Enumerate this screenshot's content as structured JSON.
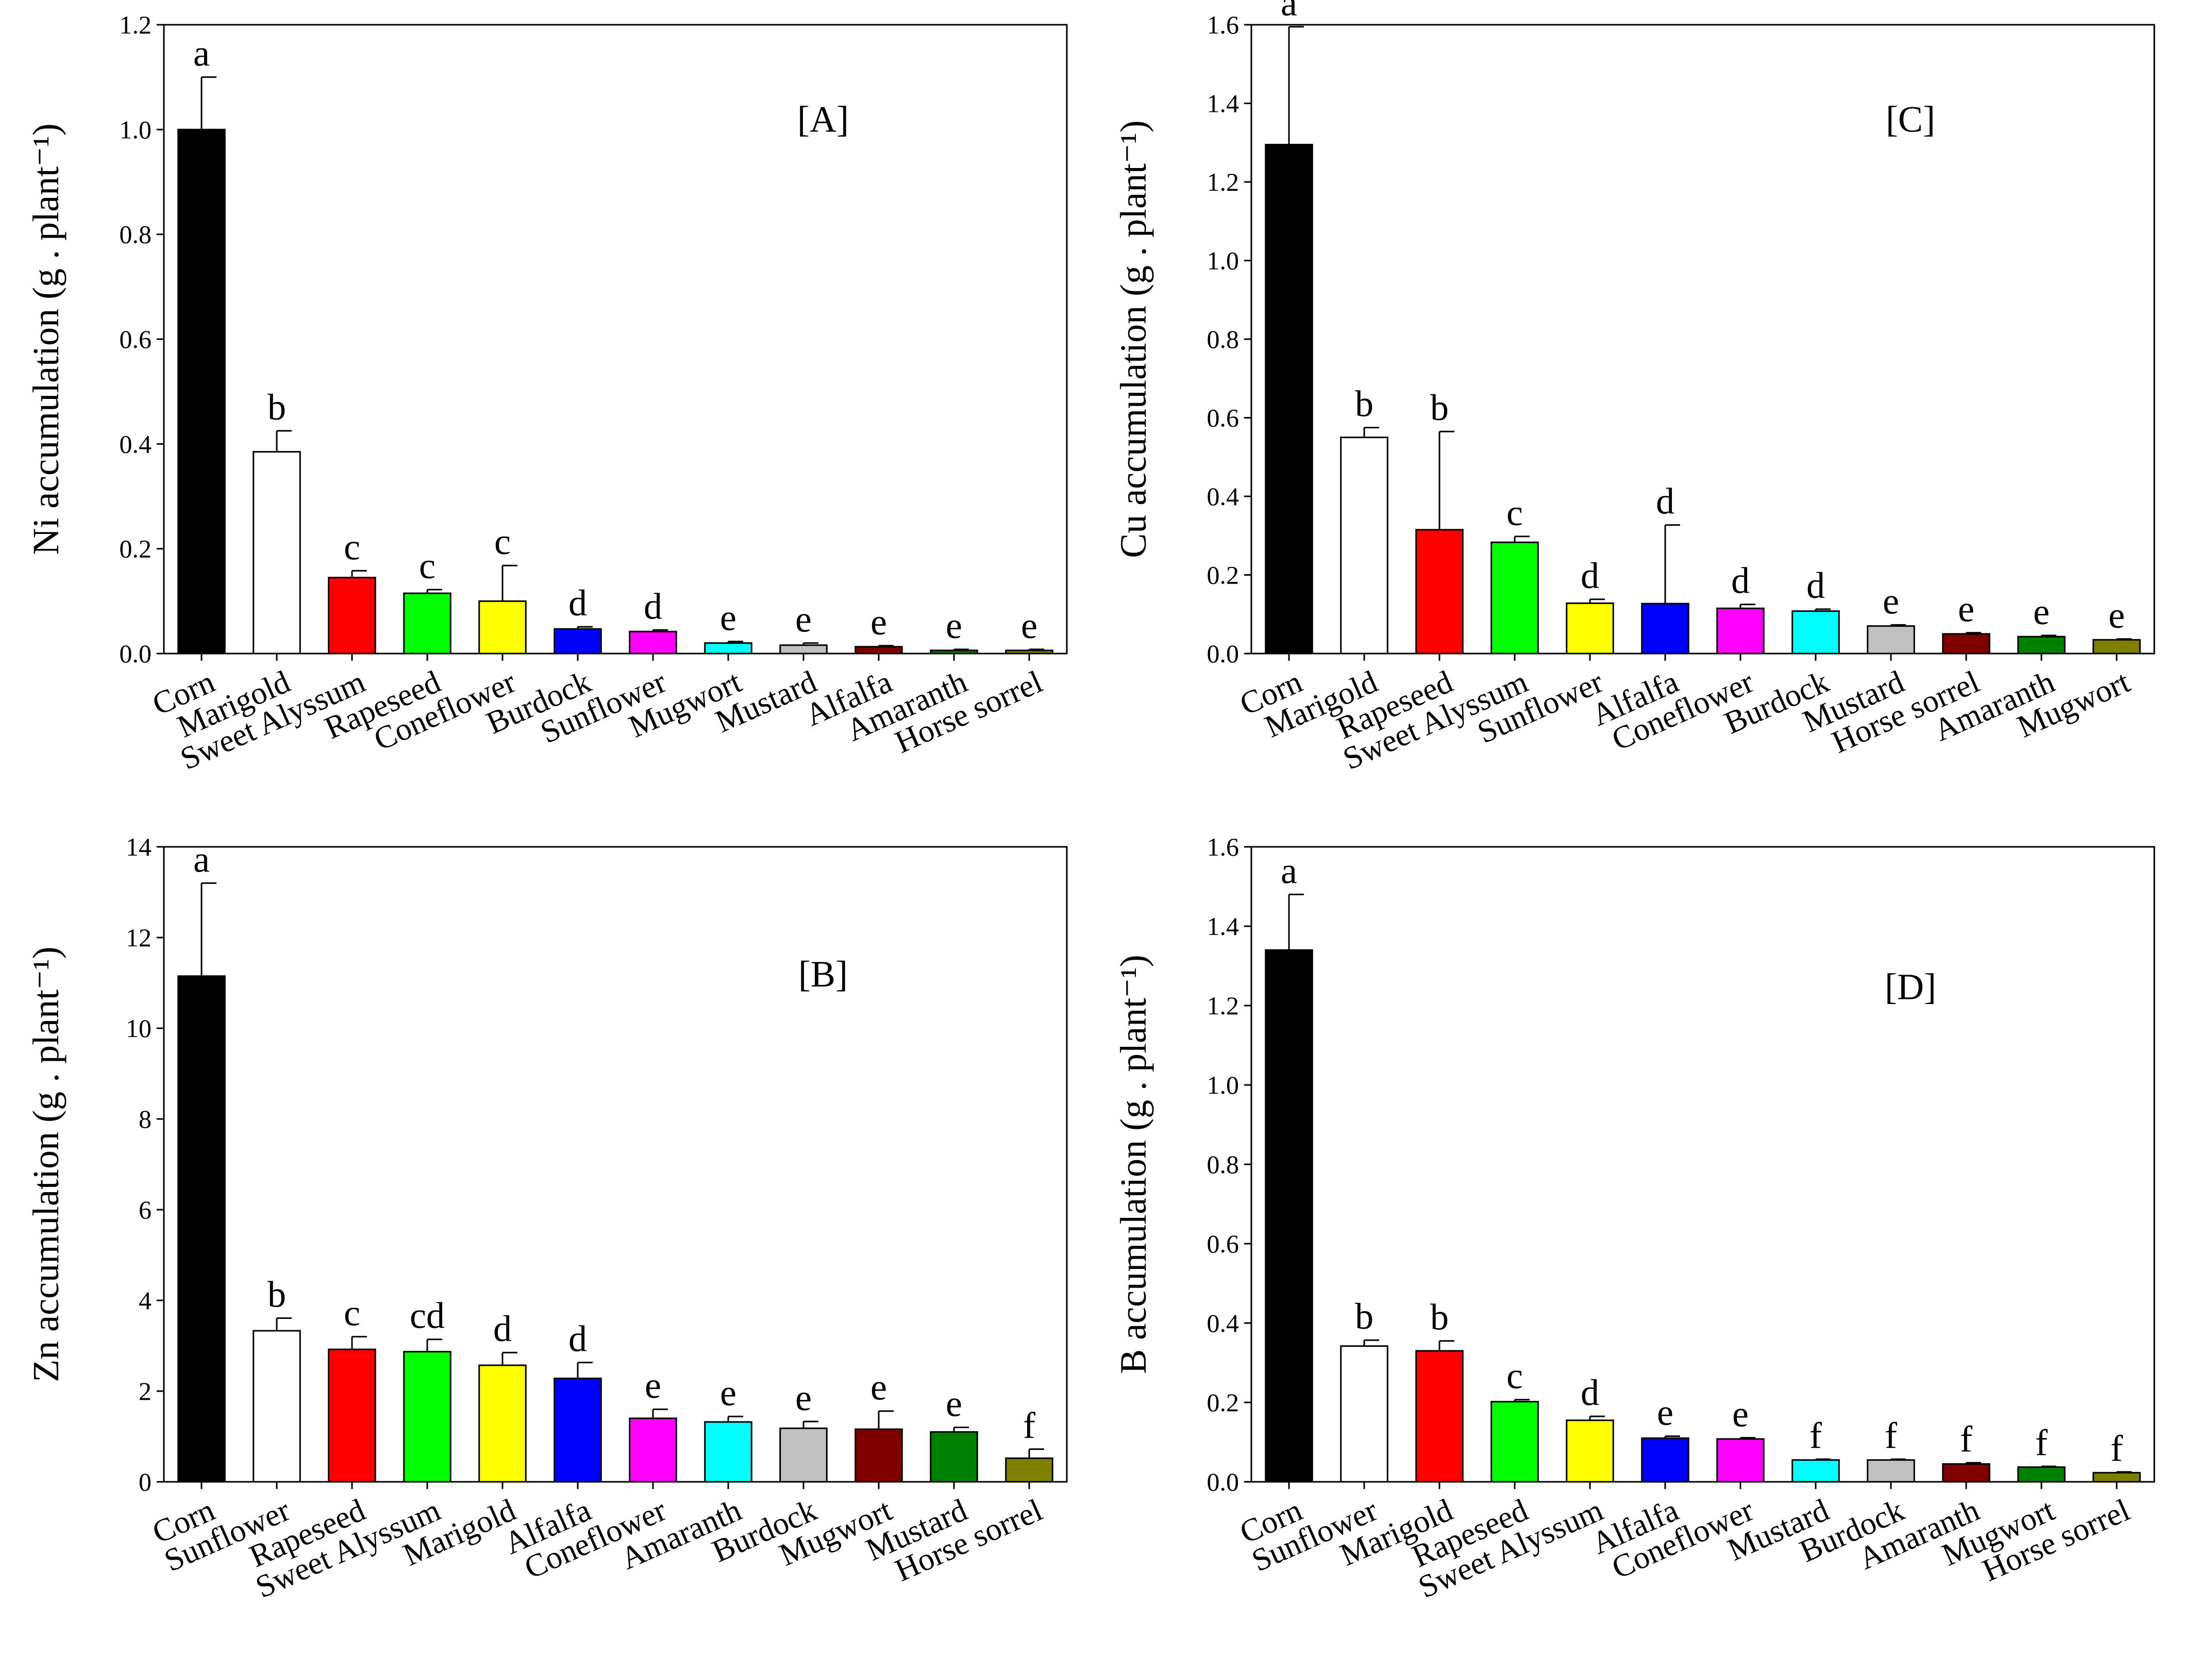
{
  "chart_data": [
    {
      "id": "A",
      "type": "bar",
      "panel_label": "[A]",
      "ylabel": "Ni accumulation (g . plant⁻¹)",
      "ylim": [
        0,
        1.2
      ],
      "yticks": [
        "0.0",
        "0.2",
        "0.4",
        "0.6",
        "0.8",
        "1.0",
        "1.2"
      ],
      "categories": [
        "Corn",
        "Marigold",
        "Sweet Alyssum",
        "Rapeseed",
        "Coneflower",
        "Burdock",
        "Sunflower",
        "Mugwort",
        "Mustard",
        "Alfalfa",
        "Amaranth",
        "Horse sorrel"
      ],
      "values": [
        1.0,
        0.385,
        0.145,
        0.115,
        0.1,
        0.047,
        0.042,
        0.02,
        0.016,
        0.013,
        0.006,
        0.006
      ],
      "errors": [
        0.1,
        0.04,
        0.013,
        0.007,
        0.068,
        0.004,
        0.003,
        0.003,
        0.004,
        0.002,
        0.002,
        0.002
      ],
      "letters": [
        "a",
        "b",
        "c",
        "c",
        "c",
        "d",
        "d",
        "e",
        "e",
        "e",
        "e",
        "e"
      ],
      "colors": [
        "#000000",
        "#ffffff",
        "#ff0000",
        "#00ff00",
        "#ffff00",
        "#0000ff",
        "#ff00ff",
        "#00ffff",
        "#c0c0c0",
        "#800000",
        "#008000",
        "#808000"
      ]
    },
    {
      "id": "C",
      "type": "bar",
      "panel_label": "[C]",
      "ylabel": "Cu accumulation (g . plant⁻¹)",
      "ylim": [
        0,
        1.6
      ],
      "yticks": [
        "0.0",
        "0.2",
        "0.4",
        "0.6",
        "0.8",
        "1.0",
        "1.2",
        "1.4",
        "1.6"
      ],
      "categories": [
        "Corn",
        "Marigold",
        "Rapeseed",
        "Sweet Alyssum",
        "Sunflower",
        "Alfalfa",
        "Coneflower",
        "Burdock",
        "Mustard",
        "Horse sorrel",
        "Amaranth",
        "Mugwort"
      ],
      "values": [
        1.295,
        0.55,
        0.315,
        0.283,
        0.128,
        0.127,
        0.115,
        0.108,
        0.07,
        0.05,
        0.043,
        0.035
      ],
      "errors": [
        0.3,
        0.025,
        0.25,
        0.015,
        0.01,
        0.2,
        0.01,
        0.005,
        0.003,
        0.003,
        0.003,
        0.002
      ],
      "letters": [
        "a",
        "b",
        "b",
        "c",
        "d",
        "d",
        "d",
        "d",
        "e",
        "e",
        "e",
        "e"
      ],
      "colors": [
        "#000000",
        "#ffffff",
        "#ff0000",
        "#00ff00",
        "#ffff00",
        "#0000ff",
        "#ff00ff",
        "#00ffff",
        "#c0c0c0",
        "#800000",
        "#008000",
        "#808000"
      ]
    },
    {
      "id": "B",
      "type": "bar",
      "panel_label": "[B]",
      "ylabel": "Zn accumulation (g . plant⁻¹)",
      "ylim": [
        0,
        14
      ],
      "yticks": [
        "0",
        "2",
        "4",
        "6",
        "8",
        "10",
        "12",
        "14"
      ],
      "categories": [
        "Corn",
        "Sunflower",
        "Rapeseed",
        "Sweet Alyssum",
        "Marigold",
        "Alfalfa",
        "Coneflower",
        "Amaranth",
        "Burdock",
        "Mugwort",
        "Mustard",
        "Horse sorrel"
      ],
      "values": [
        11.15,
        3.33,
        2.92,
        2.87,
        2.57,
        2.28,
        1.4,
        1.32,
        1.18,
        1.16,
        1.1,
        0.52
      ],
      "errors": [
        2.05,
        0.28,
        0.28,
        0.27,
        0.28,
        0.35,
        0.2,
        0.12,
        0.15,
        0.4,
        0.1,
        0.2
      ],
      "letters": [
        "a",
        "b",
        "c",
        "cd",
        "d",
        "d",
        "e",
        "e",
        "e",
        "e",
        "e",
        "f"
      ],
      "colors": [
        "#000000",
        "#ffffff",
        "#ff0000",
        "#00ff00",
        "#ffff00",
        "#0000ff",
        "#ff00ff",
        "#00ffff",
        "#c0c0c0",
        "#800000",
        "#008000",
        "#808000"
      ]
    },
    {
      "id": "D",
      "type": "bar",
      "panel_label": "[D]",
      "ylabel": "B accumulation (g . plant⁻¹)",
      "ylim": [
        0,
        1.6
      ],
      "yticks": [
        "0.0",
        "0.2",
        "0.4",
        "0.6",
        "0.8",
        "1.0",
        "1.2",
        "1.4",
        "1.6"
      ],
      "categories": [
        "Corn",
        "Sunflower",
        "Marigold",
        "Rapeseed",
        "Sweet Alyssum",
        "Alfalfa",
        "Coneflower",
        "Mustard",
        "Burdock",
        "Amaranth",
        "Mugwort",
        "Horse sorrel"
      ],
      "values": [
        1.34,
        0.342,
        0.33,
        0.202,
        0.155,
        0.11,
        0.108,
        0.055,
        0.055,
        0.045,
        0.037,
        0.023
      ],
      "errors": [
        0.14,
        0.015,
        0.025,
        0.005,
        0.01,
        0.005,
        0.003,
        0.002,
        0.002,
        0.003,
        0.002,
        0.002
      ],
      "letters": [
        "a",
        "b",
        "b",
        "c",
        "d",
        "e",
        "e",
        "f",
        "f",
        "f",
        "f",
        "f"
      ],
      "colors": [
        "#000000",
        "#ffffff",
        "#ff0000",
        "#00ff00",
        "#ffff00",
        "#0000ff",
        "#ff00ff",
        "#00ffff",
        "#c0c0c0",
        "#800000",
        "#008000",
        "#808000"
      ]
    }
  ]
}
